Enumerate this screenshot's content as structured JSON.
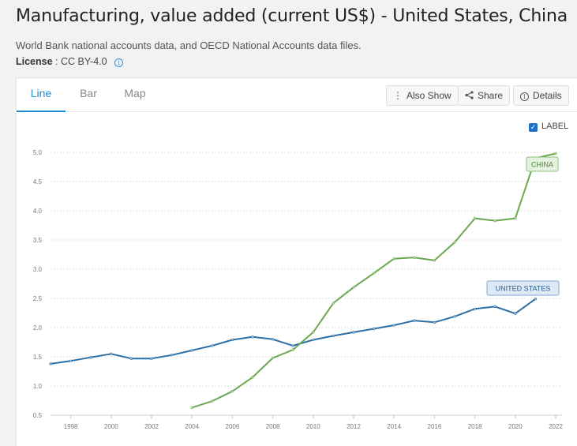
{
  "page": {
    "title": "Manufacturing, value added (current US$) - United States, China",
    "source": "World Bank national accounts data, and OECD National Accounts data files.",
    "license_label": "License",
    "license_value": ": CC BY-4.0"
  },
  "tabs": [
    {
      "label": "Line",
      "active": true
    },
    {
      "label": "Bar",
      "active": false
    },
    {
      "label": "Map",
      "active": false
    }
  ],
  "toolbar": {
    "also_show": "Also Show",
    "share": "Share",
    "details": "Details"
  },
  "label_toggle": {
    "label": "LABEL",
    "checked": true
  },
  "colors": {
    "china": "#6aa84f",
    "united_states": "#2b6fa8",
    "accent": "#1f8dd6"
  },
  "chart_data": {
    "type": "line",
    "ylim": [
      0.5,
      5.0
    ],
    "xlim": [
      1997,
      2022
    ],
    "yticks": [
      "0.5",
      "1.0",
      "1.5",
      "2.0",
      "2.5",
      "3.0",
      "3.5",
      "4.0",
      "4.5",
      "5.0"
    ],
    "xticks": [
      "1998",
      "2000",
      "2002",
      "2004",
      "2006",
      "2008",
      "2010",
      "2012",
      "2014",
      "2016",
      "2018",
      "2020",
      "2022"
    ],
    "grid": true,
    "series": [
      {
        "name": "UNITED STATES",
        "color": "#2b6fa8",
        "x": [
          1997,
          1998,
          1999,
          2000,
          2001,
          2002,
          2003,
          2004,
          2005,
          2006,
          2007,
          2008,
          2009,
          2010,
          2011,
          2012,
          2013,
          2014,
          2015,
          2016,
          2017,
          2018,
          2019,
          2020,
          2021
        ],
        "y": [
          1.38,
          1.43,
          1.49,
          1.55,
          1.47,
          1.47,
          1.53,
          1.61,
          1.69,
          1.79,
          1.84,
          1.8,
          1.69,
          1.79,
          1.86,
          1.92,
          1.98,
          2.04,
          2.12,
          2.09,
          2.19,
          2.32,
          2.36,
          2.24,
          2.49
        ]
      },
      {
        "name": "CHINA",
        "color": "#6aa84f",
        "x": [
          2004,
          2005,
          2006,
          2007,
          2008,
          2009,
          2010,
          2011,
          2012,
          2013,
          2014,
          2015,
          2016,
          2017,
          2018,
          2019,
          2020,
          2021,
          2022
        ],
        "y": [
          0.63,
          0.74,
          0.91,
          1.15,
          1.48,
          1.62,
          1.92,
          2.42,
          2.69,
          2.93,
          3.18,
          3.2,
          3.15,
          3.46,
          3.87,
          3.83,
          3.87,
          4.9,
          4.98
        ]
      }
    ]
  }
}
